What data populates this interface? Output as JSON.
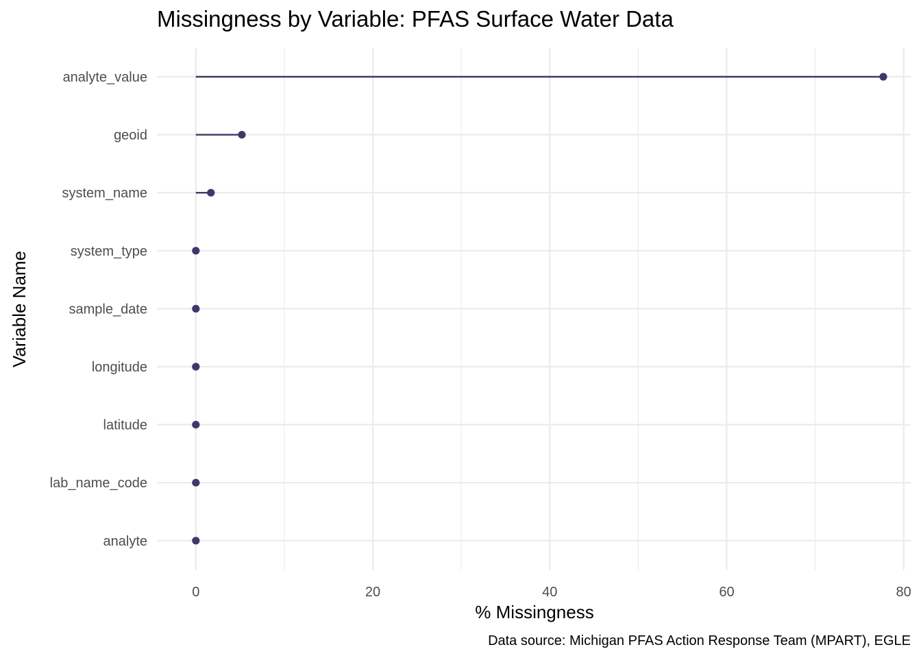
{
  "chart_data": {
    "type": "lollipop",
    "title": "Missingness by Variable: PFAS Surface Water Data",
    "xlabel": "% Missingness",
    "ylabel": "Variable Name",
    "caption": "Data source: Michigan PFAS Action Response Team (MPART), EGLE",
    "xlim": [
      -4.4,
      80.8
    ],
    "x_ticks": [
      0,
      20,
      40,
      60,
      80
    ],
    "x_minor_ticks": [
      10,
      30,
      50,
      70
    ],
    "categories": [
      "analyte_value",
      "geoid",
      "system_name",
      "system_type",
      "sample_date",
      "longitude",
      "latitude",
      "lab_name_code",
      "analyte"
    ],
    "values": [
      77.7,
      5.2,
      1.7,
      0,
      0,
      0,
      0,
      0,
      0
    ],
    "color": "#3b3a6a",
    "grid": true,
    "legend": "none"
  }
}
